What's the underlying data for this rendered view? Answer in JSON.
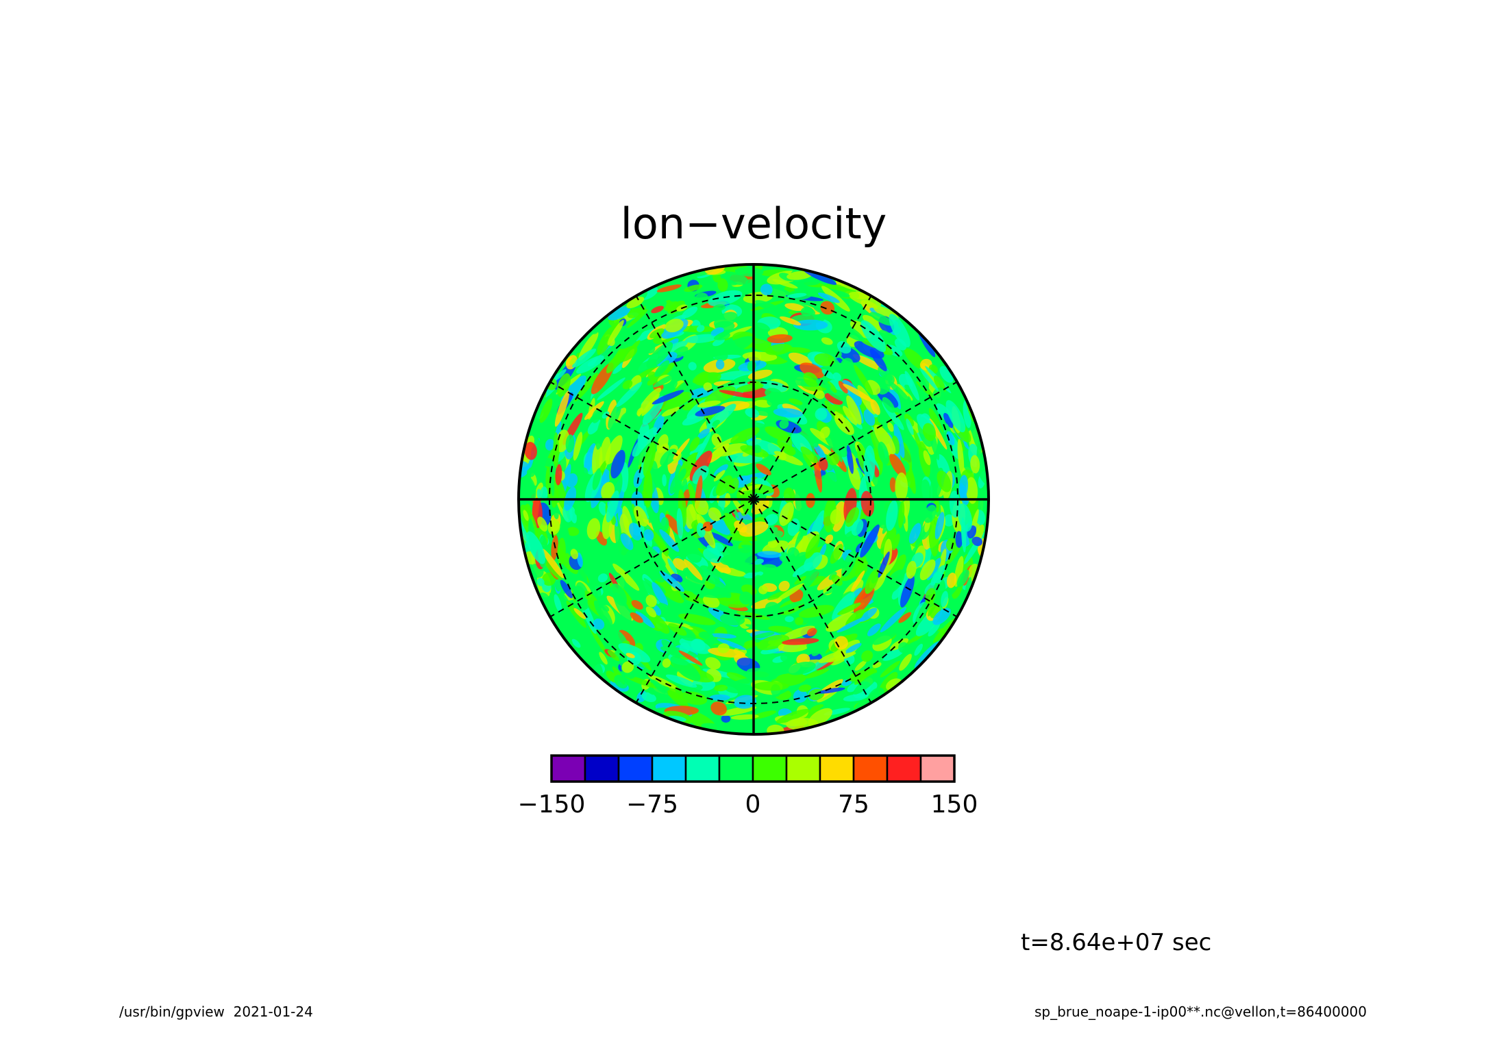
{
  "chart_data": {
    "type": "heatmap",
    "projection": "polar-stereographic",
    "title": "lon−velocity",
    "colorbar": {
      "levels": [
        -150,
        -125,
        -100,
        -75,
        -50,
        -25,
        0,
        25,
        50,
        75,
        100,
        125,
        150
      ],
      "colors": [
        "#7b00b4",
        "#0000c8",
        "#0040ff",
        "#00c8ff",
        "#00ffb4",
        "#00ff50",
        "#3cff00",
        "#aaff00",
        "#ffdc00",
        "#ff5000",
        "#ff2020",
        "#ffa0a0"
      ],
      "tick_values": [
        -150,
        -75,
        0,
        75,
        150
      ],
      "tick_labels": [
        "−150",
        "−75",
        "0",
        "75",
        "150"
      ]
    },
    "dominant_range": [
      -25,
      25
    ],
    "grid": {
      "latitude_circles": 2,
      "meridian_spacing_deg": 30,
      "dashed": true
    }
  },
  "annotations": {
    "time_label": "t=8.64e+07 sec",
    "footer_left": "/usr/bin/gpview  2021-01-24",
    "footer_right": "sp_brue_noape-1-ip00**.nc@vellon,t=86400000"
  }
}
